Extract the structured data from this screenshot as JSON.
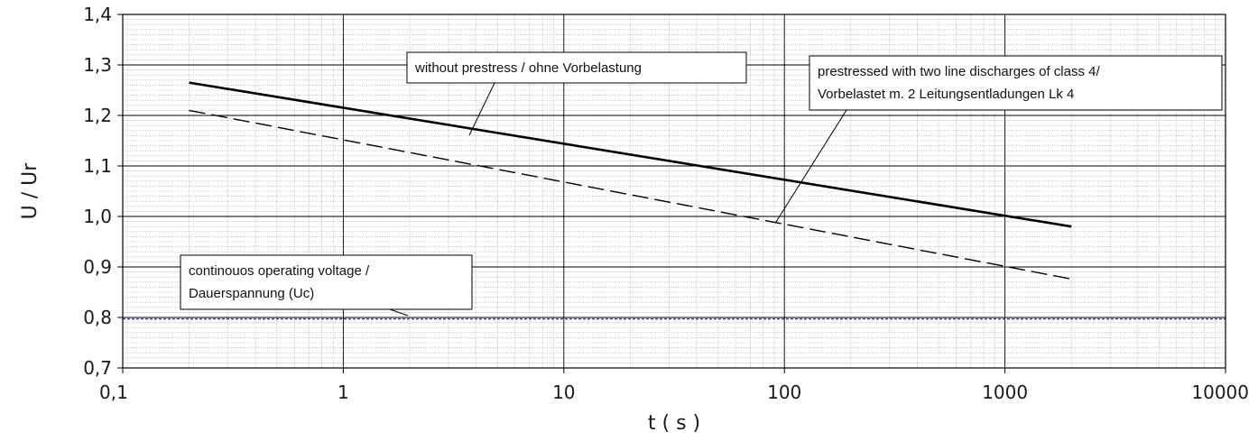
{
  "chart_data": {
    "type": "line",
    "xlabel": "t ( s )",
    "ylabel": "U / Ur",
    "xscale": "log",
    "xlim": [
      0.1,
      10000
    ],
    "ylim": [
      0.7,
      1.4
    ],
    "x_ticks": [
      "0,1",
      "1",
      "10",
      "100",
      "1000",
      "10000"
    ],
    "y_ticks": [
      "0,7",
      "0,8",
      "0,9",
      "1,0",
      "1,1",
      "1,2",
      "1,3",
      "1,4"
    ],
    "grid": "on",
    "series": [
      {
        "x": [
          0.2,
          2000
        ],
        "y": [
          1.265,
          0.98
        ],
        "style": "solid",
        "color": "#000000"
      },
      {
        "x": [
          0.2,
          2000
        ],
        "y": [
          1.21,
          0.876
        ],
        "style": "dashed",
        "color": "#000000"
      },
      {
        "x": [
          0.1,
          10000
        ],
        "y": [
          0.797,
          0.797
        ],
        "style": "dashed",
        "color": "#1a1a8a"
      }
    ],
    "annotations": [
      {
        "lines": [
          "without prestress / ohne Vorbelastung"
        ],
        "points_to_series": 0
      },
      {
        "lines": [
          "prestressed with two line discharges of class 4/",
          "Vorbelastet m. 2 Leitungsentladungen Lk 4"
        ],
        "points_to_series": 1
      },
      {
        "lines": [
          "continouos operating voltage /",
          "Dauerspannung  (Uc)"
        ],
        "points_to_series": 2
      }
    ]
  }
}
